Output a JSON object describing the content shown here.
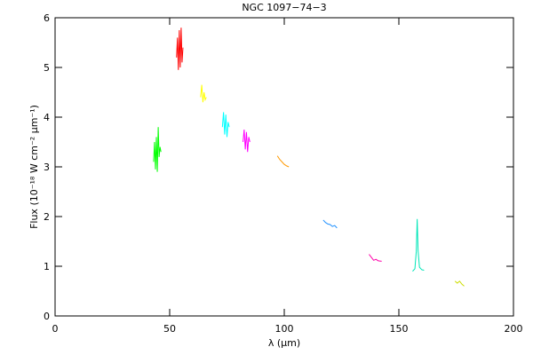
{
  "chart_data": {
    "type": "line",
    "title": "NGC 1097−74−3",
    "xlabel": "λ (μm)",
    "ylabel": "Flux (10⁻¹⁸ W cm⁻² μm⁻¹)",
    "xlim": [
      0,
      200
    ],
    "xticks": [
      0,
      50,
      100,
      150,
      200
    ],
    "ylim": [
      0,
      6
    ],
    "yticks": [
      0,
      1,
      2,
      3,
      4,
      5,
      6
    ],
    "series": [
      {
        "color": "#00ff00",
        "x": [
          43.0,
          43.4,
          43.8,
          44.2,
          44.6,
          45.0,
          45.4,
          45.8,
          46.2
        ],
        "values": [
          3.1,
          3.5,
          2.95,
          3.6,
          2.9,
          3.8,
          3.2,
          3.4,
          3.3
        ]
      },
      {
        "color": "#ff0000",
        "x": [
          53.0,
          53.4,
          53.8,
          54.2,
          54.6,
          55.0,
          55.4,
          55.8
        ],
        "values": [
          5.2,
          5.6,
          4.95,
          5.75,
          5.0,
          5.8,
          5.1,
          5.4
        ]
      },
      {
        "color": "#ffff00",
        "x": [
          63.5,
          64.0,
          64.5,
          65.0,
          65.5,
          66.0
        ],
        "values": [
          4.4,
          4.65,
          4.3,
          4.5,
          4.35,
          4.4
        ]
      },
      {
        "color": "#00ffff",
        "x": [
          73.0,
          73.5,
          74.0,
          74.5,
          75.0,
          75.5,
          76.0
        ],
        "values": [
          3.8,
          4.1,
          3.65,
          4.05,
          3.6,
          3.9,
          3.8
        ]
      },
      {
        "color": "#ff00ff",
        "x": [
          82.0,
          82.5,
          83.0,
          83.5,
          84.0,
          84.5,
          85.0
        ],
        "values": [
          3.5,
          3.75,
          3.35,
          3.7,
          3.3,
          3.6,
          3.5
        ]
      },
      {
        "color": "#ff9900",
        "x": [
          97.0,
          98.0,
          99.0,
          100.0,
          101.0,
          102.0
        ],
        "values": [
          3.22,
          3.15,
          3.1,
          3.05,
          3.02,
          3.0
        ]
      },
      {
        "color": "#1e90ff",
        "x": [
          117.0,
          118.0,
          119.0,
          120.0,
          121.0,
          122.0,
          123.0
        ],
        "values": [
          1.93,
          1.88,
          1.85,
          1.84,
          1.8,
          1.82,
          1.77
        ]
      },
      {
        "color": "#ff00aa",
        "x": [
          137.0,
          138.0,
          139.0,
          140.0,
          141.0,
          142.5
        ],
        "values": [
          1.24,
          1.18,
          1.12,
          1.14,
          1.11,
          1.1
        ]
      },
      {
        "color": "#00e6b8",
        "x": [
          156.0,
          157.0,
          157.6,
          158.0,
          158.4,
          159.0,
          160.0,
          161.0
        ],
        "values": [
          0.9,
          0.95,
          1.3,
          1.95,
          1.3,
          0.98,
          0.93,
          0.92
        ]
      },
      {
        "color": "#ccdd00",
        "x": [
          174.5,
          175.5,
          176.5,
          177.5,
          178.5
        ],
        "values": [
          0.7,
          0.66,
          0.7,
          0.64,
          0.6
        ]
      }
    ]
  }
}
